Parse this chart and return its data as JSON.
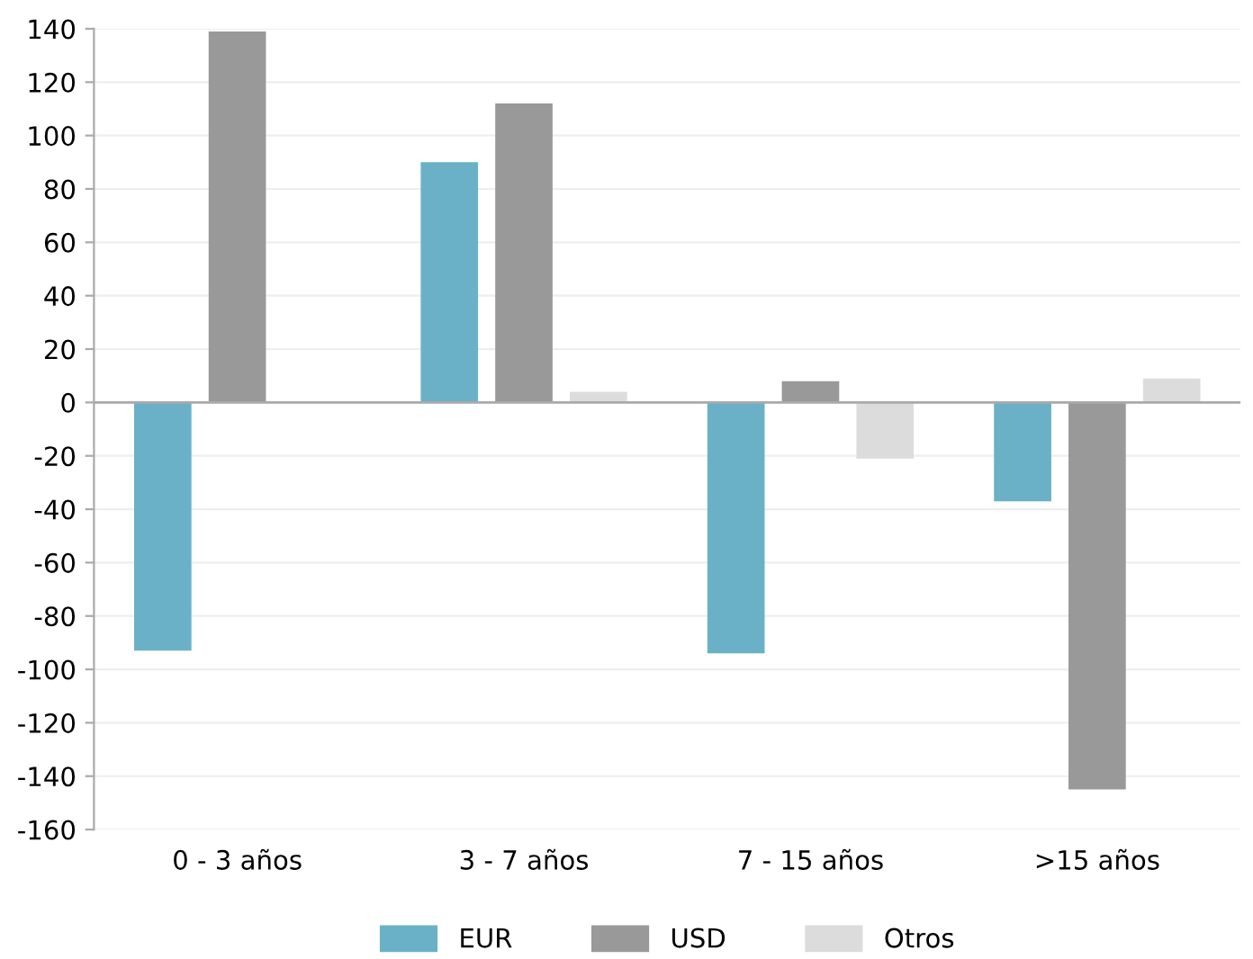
{
  "chart_data": {
    "type": "bar",
    "categories": [
      "0 - 3 años",
      "3 - 7 años",
      "7 - 15 años",
      ">15 años"
    ],
    "series": [
      {
        "name": "EUR",
        "color": "#6ab1c8",
        "values": [
          -93,
          90,
          -94,
          -37
        ]
      },
      {
        "name": "USD",
        "color": "#999999",
        "values": [
          139,
          112,
          8,
          -145
        ]
      },
      {
        "name": "Otros",
        "color": "#dcdcdc",
        "values": [
          0,
          4,
          -21,
          9
        ]
      }
    ],
    "ylim": [
      -160,
      140
    ],
    "yticks": [
      -160,
      -140,
      -120,
      -100,
      -80,
      -60,
      -40,
      -20,
      0,
      20,
      40,
      60,
      80,
      100,
      120,
      140
    ],
    "ref_lines": [
      {
        "axis": "y",
        "value": 0,
        "color": "#aaaaaa"
      }
    ],
    "grid": "y",
    "legend": "bottom"
  }
}
